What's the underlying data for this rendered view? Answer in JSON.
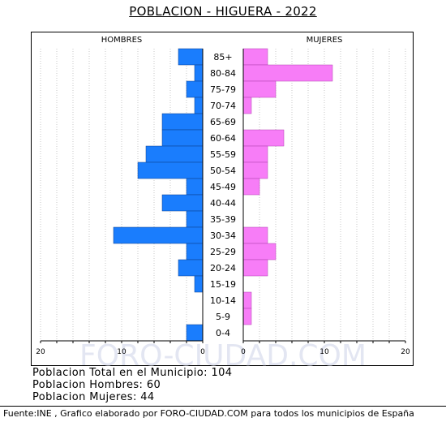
{
  "title": "POBLACION - HIGUERA - 2022",
  "watermark": "FORO-CIUDAD.COM",
  "colors": {
    "men": "#1a7dfd",
    "women": "#f77df7",
    "grid": "#c7c7c7",
    "border": "#000000"
  },
  "chart_data": {
    "type": "bar",
    "orientation": "horizontal-population-pyramid",
    "left_label": "HOMBRES",
    "right_label": "MUJERES",
    "categories": [
      "85+",
      "80-84",
      "75-79",
      "70-74",
      "65-69",
      "60-64",
      "55-59",
      "50-54",
      "45-49",
      "40-44",
      "35-39",
      "30-34",
      "25-29",
      "20-24",
      "15-19",
      "10-14",
      "5-9",
      "0-4"
    ],
    "series": [
      {
        "name": "HOMBRES",
        "values": [
          3,
          1,
          2,
          1,
          5,
          5,
          7,
          8,
          2,
          5,
          2,
          11,
          2,
          3,
          1,
          0,
          0,
          2
        ]
      },
      {
        "name": "MUJERES",
        "values": [
          3,
          11,
          4,
          1,
          0,
          5,
          3,
          3,
          2,
          0,
          0,
          3,
          4,
          3,
          0,
          1,
          1,
          0
        ]
      }
    ],
    "x_ticks_left": [
      "20",
      "10",
      "0"
    ],
    "x_ticks_right": [
      "0",
      "10",
      "20"
    ],
    "xlim": [
      0,
      20
    ],
    "grid": true
  },
  "stats": {
    "total": "Poblacion Total en el Municipio: 104",
    "men": "Poblacion Hombres: 60",
    "women": "Poblacion Mujeres: 44"
  },
  "source": "Fuente:INE , Grafico elaborado por FORO-CIUDAD.COM para todos los municipios de España"
}
